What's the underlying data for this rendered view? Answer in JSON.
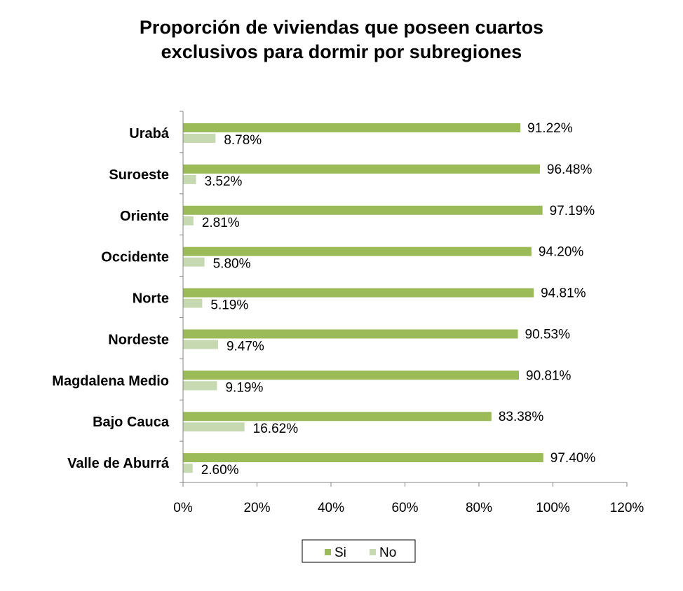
{
  "chart_data": {
    "type": "bar",
    "orientation": "horizontal",
    "title_lines": [
      "Proporción de viviendas que poseen cuartos",
      "exclusivos para dormir por subregiones"
    ],
    "categories": [
      "Urabá",
      "Suroeste",
      "Oriente",
      "Occidente",
      "Norte",
      "Nordeste",
      "Magdalena Medio",
      "Bajo Cauca",
      "Valle de Aburrá"
    ],
    "series": [
      {
        "name": "Si",
        "color": "#9BBB59",
        "values": [
          91.22,
          96.48,
          97.19,
          94.2,
          94.81,
          90.53,
          90.81,
          83.38,
          97.4
        ],
        "labels": [
          "91.22%",
          "96.48%",
          "97.19%",
          "94.20%",
          "94.81%",
          "90.53%",
          "90.81%",
          "83.38%",
          "97.40%"
        ]
      },
      {
        "name": "No",
        "color": "#C6D9B0",
        "values": [
          8.78,
          3.52,
          2.81,
          5.8,
          5.19,
          9.47,
          9.19,
          16.62,
          2.6
        ],
        "labels": [
          "8.78%",
          "3.52%",
          "2.81%",
          "5.80%",
          "5.19%",
          "9.47%",
          "9.19%",
          "16.62%",
          "2.60%"
        ]
      }
    ],
    "x_ticks": [
      0,
      20,
      40,
      60,
      80,
      100,
      120
    ],
    "x_tick_labels": [
      "0%",
      "20%",
      "40%",
      "60%",
      "80%",
      "100%",
      "120%"
    ],
    "xlim": [
      0,
      120
    ],
    "grid": false,
    "legend_position": "bottom"
  }
}
